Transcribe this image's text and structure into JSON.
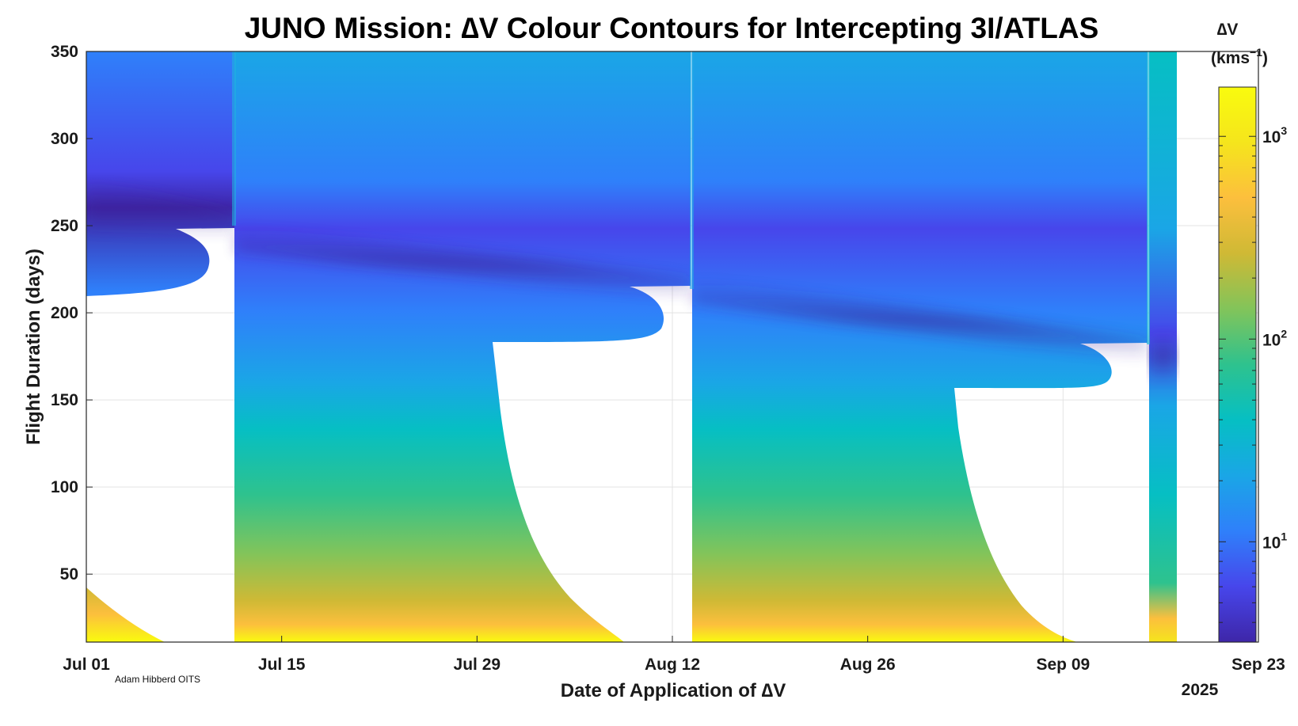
{
  "chart_data": {
    "type": "heatmap",
    "title": "JUNO Mission: ∆V Colour Contours for Intercepting 3I/ATLAS",
    "xlabel": "Date of Application of ∆V",
    "ylabel": "Flight Duration (days)",
    "x_tick_labels": [
      "Jul 01",
      "Jul 15",
      "Jul 29",
      "Aug 12",
      "Aug 26",
      "Sep 09",
      "Sep 23"
    ],
    "x_year_label": "2025",
    "x_range": [
      "2025-07-01",
      "2025-09-23"
    ],
    "y_ticks": [
      50,
      100,
      150,
      200,
      250,
      300,
      350
    ],
    "y_range": [
      11,
      350
    ],
    "grid": true,
    "colorbar": {
      "label_top": "∆V",
      "label_unit": "(kms",
      "label_unit_exp": "−1",
      "label_unit_close": ")",
      "scale": "log",
      "tick_values": [
        10,
        100,
        1000
      ],
      "tick_base": "10",
      "tick_exponents": [
        "1",
        "2",
        "3"
      ],
      "colormap": "parula",
      "colors": [
        "#3e26a8",
        "#4746eb",
        "#2f80fa",
        "#1aa6e6",
        "#06bfc3",
        "#2ec28e",
        "#82c45a",
        "#cfb935",
        "#fcbf3d",
        "#f5e51c",
        "#f9fb0e"
      ]
    },
    "credit": "Adam Hibberd OITS"
  }
}
